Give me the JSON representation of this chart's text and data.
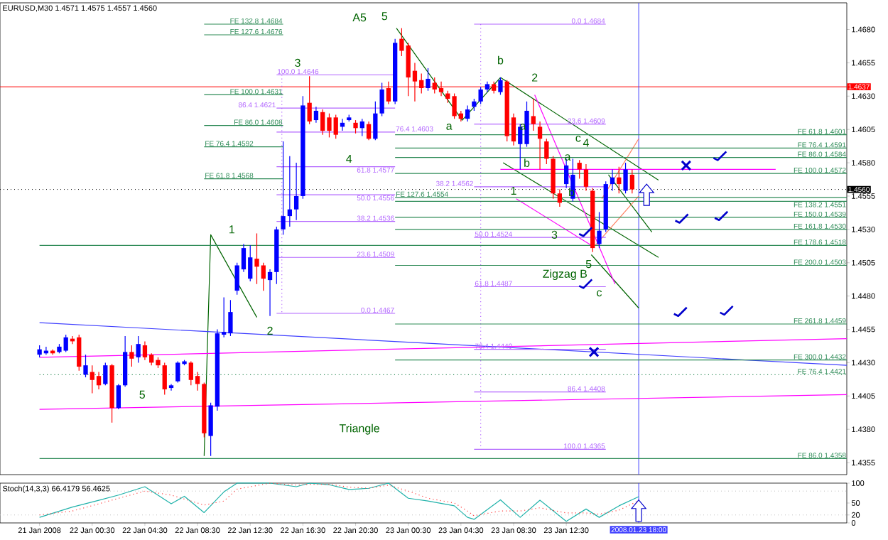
{
  "chart_data": [
    {
      "type": "candlestick",
      "title": "EURUSD,M30 1.4571 1.4575 1.4557 1.4560",
      "x": [
        "2008-01-21T20:30",
        "2008-01-21T21:00",
        "2008-01-21T21:30",
        "2008-01-21T22:00",
        "2008-01-21T22:30",
        "2008-01-21T23:00",
        "2008-01-21T23:30",
        "2008-01-22T00:00",
        "2008-01-22T00:30",
        "2008-01-22T01:00",
        "2008-01-22T01:30",
        "2008-01-22T02:00",
        "2008-01-22T02:30",
        "2008-01-22T03:00",
        "2008-01-22T03:30",
        "2008-01-22T04:00",
        "2008-01-22T04:30",
        "2008-01-22T05:00",
        "2008-01-22T05:30",
        "2008-01-22T06:00",
        "2008-01-22T06:30",
        "2008-01-22T07:00",
        "2008-01-22T07:30",
        "2008-01-22T08:00",
        "2008-01-22T08:30",
        "2008-01-22T09:00",
        "2008-01-22T09:30",
        "2008-01-22T10:00",
        "2008-01-22T10:30",
        "2008-01-22T11:00",
        "2008-01-22T11:30",
        "2008-01-22T12:00",
        "2008-01-22T12:30",
        "2008-01-22T13:00",
        "2008-01-22T13:30",
        "2008-01-22T14:00",
        "2008-01-22T14:30",
        "2008-01-22T15:00",
        "2008-01-22T15:30",
        "2008-01-22T16:00",
        "2008-01-22T16:30",
        "2008-01-22T17:00",
        "2008-01-22T17:30",
        "2008-01-22T18:00",
        "2008-01-22T18:30",
        "2008-01-22T19:00",
        "2008-01-22T19:30",
        "2008-01-22T20:00",
        "2008-01-22T20:30",
        "2008-01-22T21:00",
        "2008-01-22T21:30",
        "2008-01-22T22:00",
        "2008-01-22T22:30",
        "2008-01-22T23:00",
        "2008-01-22T23:30",
        "2008-01-23T00:00",
        "2008-01-23T00:30",
        "2008-01-23T01:00",
        "2008-01-23T01:30",
        "2008-01-23T02:00",
        "2008-01-23T02:30",
        "2008-01-23T03:00",
        "2008-01-23T03:30",
        "2008-01-23T04:00",
        "2008-01-23T04:30",
        "2008-01-23T05:00",
        "2008-01-23T05:30",
        "2008-01-23T06:00",
        "2008-01-23T06:30",
        "2008-01-23T07:00",
        "2008-01-23T07:30",
        "2008-01-23T08:00",
        "2008-01-23T08:30",
        "2008-01-23T09:00",
        "2008-01-23T09:30",
        "2008-01-23T10:00",
        "2008-01-23T10:30",
        "2008-01-23T11:00",
        "2008-01-23T11:30",
        "2008-01-23T12:00",
        "2008-01-23T12:30",
        "2008-01-23T13:00",
        "2008-01-23T13:30",
        "2008-01-23T14:00",
        "2008-01-23T14:30",
        "2008-01-23T15:00",
        "2008-01-23T15:30",
        "2008-01-23T16:00",
        "2008-01-23T16:30",
        "2008-01-23T17:00",
        "2008-01-23T17:30"
      ],
      "ohlc": [
        [
          1.4436,
          1.4443,
          1.4434,
          1.444
        ],
        [
          1.4437,
          1.4442,
          1.4436,
          1.4439
        ],
        [
          1.4439,
          1.444,
          1.4436,
          1.4437
        ],
        [
          1.4438,
          1.4444,
          1.4437,
          1.4442
        ],
        [
          1.4439,
          1.4451,
          1.4438,
          1.4449
        ],
        [
          1.4448,
          1.445,
          1.4444,
          1.4446
        ],
        [
          1.4449,
          1.4451,
          1.4424,
          1.4427
        ],
        [
          1.4421,
          1.4436,
          1.4419,
          1.4428
        ],
        [
          1.4423,
          1.4428,
          1.4407,
          1.4417
        ],
        [
          1.442,
          1.4423,
          1.441,
          1.4413
        ],
        [
          1.4414,
          1.443,
          1.4413,
          1.4428
        ],
        [
          1.4428,
          1.4429,
          1.4385,
          1.4396
        ],
        [
          1.4396,
          1.4414,
          1.4395,
          1.4413
        ],
        [
          1.4413,
          1.445,
          1.4412,
          1.4438
        ],
        [
          1.4438,
          1.4443,
          1.4427,
          1.4433
        ],
        [
          1.4434,
          1.445,
          1.443,
          1.4444
        ],
        [
          1.4443,
          1.4446,
          1.4432,
          1.4434
        ],
        [
          1.4436,
          1.4437,
          1.4428,
          1.443
        ],
        [
          1.4432,
          1.4434,
          1.4426,
          1.4428
        ],
        [
          1.4428,
          1.443,
          1.4406,
          1.441
        ],
        [
          1.4411,
          1.4414,
          1.4409,
          1.4413
        ],
        [
          1.4416,
          1.4431,
          1.4415,
          1.443
        ],
        [
          1.4429,
          1.4432,
          1.4428,
          1.4431
        ],
        [
          1.443,
          1.4431,
          1.4413,
          1.4417
        ],
        [
          1.442,
          1.4423,
          1.4409,
          1.4414
        ],
        [
          1.4414,
          1.4415,
          1.4374,
          1.4377
        ],
        [
          1.4375,
          1.44,
          1.436,
          1.4398
        ],
        [
          1.4397,
          1.4455,
          1.4394,
          1.4452
        ],
        [
          1.4451,
          1.4479,
          1.4449,
          1.4453
        ],
        [
          1.4452,
          1.4477,
          1.445,
          1.4468
        ],
        [
          1.4484,
          1.4505,
          1.4481,
          1.4503
        ],
        [
          1.45,
          1.4519,
          1.4498,
          1.4516
        ],
        [
          1.4493,
          1.4518,
          1.4491,
          1.4509
        ],
        [
          1.4508,
          1.4527,
          1.4489,
          1.4502
        ],
        [
          1.4503,
          1.4505,
          1.4484,
          1.4493
        ],
        [
          1.4492,
          1.45,
          1.4465,
          1.4498
        ],
        [
          1.4498,
          1.4532,
          1.4489,
          1.453
        ],
        [
          1.453,
          1.4596,
          1.4526,
          1.454
        ],
        [
          1.454,
          1.4585,
          1.4532,
          1.4545
        ],
        [
          1.4545,
          1.458,
          1.4537,
          1.4555
        ],
        [
          1.4555,
          1.463,
          1.4553,
          1.4623
        ],
        [
          1.4625,
          1.4645,
          1.4609,
          1.4611
        ],
        [
          1.4612,
          1.4622,
          1.461,
          1.4619
        ],
        [
          1.4618,
          1.462,
          1.4601,
          1.4604
        ],
        [
          1.4614,
          1.4617,
          1.4599,
          1.4604
        ],
        [
          1.4614,
          1.4616,
          1.4598,
          1.4601
        ],
        [
          1.4607,
          1.4613,
          1.4604,
          1.461
        ],
        [
          1.4612,
          1.4616,
          1.4611,
          1.4614
        ],
        [
          1.461,
          1.4612,
          1.4602,
          1.4606
        ],
        [
          1.4606,
          1.4613,
          1.46,
          1.4611
        ],
        [
          1.4609,
          1.4611,
          1.4597,
          1.4598
        ],
        [
          1.4598,
          1.4626,
          1.4597,
          1.4617
        ],
        [
          1.4617,
          1.464,
          1.4615,
          1.4635
        ],
        [
          1.4636,
          1.4641,
          1.4624,
          1.4626
        ],
        [
          1.4626,
          1.4673,
          1.4624,
          1.467
        ],
        [
          1.4673,
          1.4681,
          1.466,
          1.4664
        ],
        [
          1.4668,
          1.467,
          1.463,
          1.4644
        ],
        [
          1.4649,
          1.4655,
          1.4626,
          1.4641
        ],
        [
          1.4642,
          1.4647,
          1.4632,
          1.4636
        ],
        [
          1.4636,
          1.4651,
          1.4634,
          1.4643
        ],
        [
          1.464,
          1.4644,
          1.4632,
          1.4635
        ],
        [
          1.4636,
          1.4641,
          1.463,
          1.4633
        ],
        [
          1.4632,
          1.4634,
          1.4625,
          1.4628
        ],
        [
          1.463,
          1.4632,
          1.4613,
          1.4615
        ],
        [
          1.4617,
          1.4619,
          1.4611,
          1.4613
        ],
        [
          1.4613,
          1.4623,
          1.4611,
          1.462
        ],
        [
          1.4622,
          1.4628,
          1.4619,
          1.4626
        ],
        [
          1.4626,
          1.4637,
          1.4624,
          1.4635
        ],
        [
          1.4635,
          1.4641,
          1.4633,
          1.4639
        ],
        [
          1.4639,
          1.4641,
          1.4632,
          1.4634
        ],
        [
          1.4633,
          1.4644,
          1.4631,
          1.4642
        ],
        [
          1.4641,
          1.4642,
          1.4596,
          1.46
        ],
        [
          1.4614,
          1.4617,
          1.4593,
          1.4596
        ],
        [
          1.4594,
          1.4609,
          1.4575,
          1.4607
        ],
        [
          1.4594,
          1.4626,
          1.4592,
          1.4619
        ],
        [
          1.4615,
          1.4628,
          1.4604,
          1.4609
        ],
        [
          1.4607,
          1.4611,
          1.4575,
          1.4598
        ],
        [
          1.4596,
          1.4598,
          1.4579,
          1.4583
        ],
        [
          1.4583,
          1.4585,
          1.4553,
          1.4557
        ],
        [
          1.4557,
          1.456,
          1.4547,
          1.455
        ],
        [
          1.4564,
          1.4583,
          1.4561,
          1.4578
        ],
        [
          1.4553,
          1.4583,
          1.4551,
          1.4571
        ],
        [
          1.458,
          1.4582,
          1.4568,
          1.4575
        ],
        [
          1.4575,
          1.4579,
          1.4559,
          1.4562
        ],
        [
          1.4559,
          1.4561,
          1.4513,
          1.4516
        ],
        [
          1.4519,
          1.4543,
          1.4516,
          1.4529
        ],
        [
          1.453,
          1.4566,
          1.4528,
          1.4564
        ],
        [
          1.4564,
          1.4575,
          1.4559,
          1.4569
        ],
        [
          1.4569,
          1.4577,
          1.4557,
          1.4564
        ],
        [
          1.4559,
          1.458,
          1.4557,
          1.4575
        ],
        [
          1.4571,
          1.4575,
          1.4557,
          1.456
        ]
      ],
      "colors": [
        "#0000ff",
        "#0000ff",
        "#ff0000",
        "#0000ff",
        "#0000ff",
        "#ff0000",
        "#ff0000",
        "#0000ff",
        "#ff0000",
        "#ff0000",
        "#0000ff",
        "#ff0000",
        "#0000ff",
        "#0000ff",
        "#ff0000",
        "#0000ff",
        "#ff0000",
        "#ff0000",
        "#ff0000",
        "#ff0000",
        "#0000ff",
        "#0000ff",
        "#0000ff",
        "#ff0000",
        "#ff0000",
        "#ff0000",
        "#0000ff",
        "#0000ff",
        "#0000ff",
        "#0000ff",
        "#0000ff",
        "#0000ff",
        "#0000ff",
        "#ff0000",
        "#ff0000",
        "#0000ff",
        "#0000ff",
        "#0000ff",
        "#0000ff",
        "#0000ff",
        "#0000ff",
        "#ff0000",
        "#0000ff",
        "#ff0000",
        "#ff0000",
        "#ff0000",
        "#0000ff",
        "#0000ff",
        "#ff0000",
        "#0000ff",
        "#ff0000",
        "#0000ff",
        "#0000ff",
        "#ff0000",
        "#0000ff",
        "#ff0000",
        "#ff0000",
        "#ff0000",
        "#ff0000",
        "#0000ff",
        "#ff0000",
        "#ff0000",
        "#ff0000",
        "#ff0000",
        "#ff0000",
        "#0000ff",
        "#0000ff",
        "#0000ff",
        "#0000ff",
        "#ff0000",
        "#0000ff",
        "#ff0000",
        "#ff0000",
        "#0000ff",
        "#0000ff",
        "#ff0000",
        "#ff0000",
        "#ff0000",
        "#ff0000",
        "#ff0000",
        "#0000ff",
        "#0000ff",
        "#ff0000",
        "#ff0000",
        "#ff0000",
        "#0000ff",
        "#0000ff",
        "#0000ff",
        "#ff0000",
        "#0000ff",
        "#ff0000"
      ],
      "series": [
        {
          "type": "line",
          "x": [
            "2008-01-22T09:00",
            "2008-01-22T09:30",
            "2008-01-22T13:00"
          ],
          "values": [
            1.436,
            1.4526,
            1.4464
          ],
          "color": "#006400"
        },
        {
          "type": "line",
          "x": [
            "2008-01-22T23:36",
            "2008-01-23T04:36",
            "2008-01-23T07:30"
          ],
          "values": [
            1.4681,
            1.4612,
            1.4644
          ],
          "color": "#006400"
        },
        {
          "type": "line",
          "x": [
            "2008-01-23T07:30",
            "2008-01-23T19:30"
          ],
          "values": [
            1.4644,
            1.4567
          ],
          "color": "#006400"
        },
        {
          "type": "line",
          "x": [
            "2008-01-23T07:42",
            "2008-01-23T19:30"
          ],
          "values": [
            1.458,
            1.4509
          ],
          "color": "#006400"
        },
        {
          "type": "line",
          "x": [
            "2008-01-23T15:42",
            "2008-01-23T19:00"
          ],
          "values": [
            1.4571,
            1.4528
          ],
          "color": "#006400"
        },
        {
          "type": "line",
          "x": [
            "2008-01-23T14:24",
            "2008-01-23T18:00"
          ],
          "values": [
            1.4511,
            1.4471
          ],
          "color": "#006400"
        },
        {
          "type": "line",
          "x": [
            "2008-01-23T10:06",
            "2008-01-23T16:12"
          ],
          "values": [
            1.4631,
            1.4489
          ],
          "color": "#ff00ff"
        },
        {
          "type": "line",
          "x": [
            "2008-01-23T08:42",
            "2008-01-23T14:24"
          ],
          "values": [
            1.4553,
            1.4518
          ],
          "color": "#ff00ff"
        },
        {
          "type": "line",
          "x": [
            "2008-01-23T07:30",
            "2008-01-24T04:24"
          ],
          "values": [
            1.4575,
            1.4575
          ],
          "color": "#ff00ff"
        },
        {
          "type": "line",
          "x": [
            "2008-01-21T20:30",
            "2008-01-24T09:48"
          ],
          "values": [
            1.4434,
            1.4448
          ],
          "color": "#ff00ff"
        },
        {
          "type": "line",
          "x": [
            "2008-01-21T20:30",
            "2008-01-24T09:48"
          ],
          "values": [
            1.4395,
            1.4406
          ],
          "color": "#ff00ff"
        },
        {
          "type": "line",
          "x": [
            "2008-01-21T20:30",
            "2008-01-24T09:48"
          ],
          "values": [
            1.446,
            1.4428
          ],
          "color": "#4040ff"
        },
        {
          "type": "line",
          "x": [
            "2008-01-23T15:12",
            "2008-01-23T18:00"
          ],
          "values": [
            1.4553,
            1.4598
          ],
          "color": "#ff8060"
        },
        {
          "type": "line",
          "x": [
            "2008-01-23T14:42",
            "2008-01-23T18:00"
          ],
          "values": [
            1.4518,
            1.4555
          ],
          "color": "#ff8060"
        },
        {
          "type": "line",
          "x": [
            "2008-01-22T14:54",
            "2008-01-22T14:54"
          ],
          "values": [
            1.4646,
            1.4467
          ],
          "color": "#b266ff",
          "line_style": "dotted"
        },
        {
          "type": "line",
          "x": [
            "2008-01-23T06:00",
            "2008-01-23T06:00"
          ],
          "values": [
            1.4684,
            1.4365
          ],
          "color": "#b266ff",
          "line_style": "dotted"
        },
        {
          "type": "line",
          "name": "FE 132.8  1.4684",
          "x": [
            "2008-01-22T09:00",
            "2008-01-22T15:00"
          ],
          "values": [
            1.4684,
            1.4684
          ],
          "color": "#2e8b57"
        },
        {
          "type": "line",
          "name": "FE 127.6  1.4676",
          "x": [
            "2008-01-22T09:00",
            "2008-01-22T15:00"
          ],
          "values": [
            1.4676,
            1.4676
          ],
          "color": "#2e8b57"
        },
        {
          "type": "line",
          "name": "FE 100.0  1.4631",
          "x": [
            "2008-01-22T09:00",
            "2008-01-22T15:00"
          ],
          "values": [
            1.4631,
            1.4631
          ],
          "color": "#2e8b57"
        },
        {
          "type": "line",
          "name": "FE 86.0  1.4608",
          "x": [
            "2008-01-22T09:00",
            "2008-01-22T15:00"
          ],
          "values": [
            1.4608,
            1.4608
          ],
          "color": "#2e8b57"
        },
        {
          "type": "line",
          "name": "FE 76.4  1.4592",
          "x": [
            "2008-01-22T09:00",
            "2008-01-22T15:00"
          ],
          "values": [
            1.4592,
            1.4592
          ],
          "color": "#2e8b57"
        },
        {
          "type": "line",
          "name": "FE 61.8  1.4568",
          "x": [
            "2008-01-22T09:00",
            "2008-01-22T15:00"
          ],
          "values": [
            1.4568,
            1.4568
          ],
          "color": "#2e8b57"
        },
        {
          "type": "line",
          "name": "100.0  1.4646",
          "x": [
            "2008-01-22T14:30",
            "2008-01-22T23:30"
          ],
          "values": [
            1.4646,
            1.4646
          ],
          "color": "#b266ff"
        },
        {
          "type": "line",
          "name": "86.4  1.4621",
          "x": [
            "2008-01-22T14:30",
            "2008-01-22T23:30"
          ],
          "values": [
            1.4621,
            1.4621
          ],
          "color": "#b266ff"
        },
        {
          "type": "line",
          "name": "76.4  1.4603",
          "x": [
            "2008-01-22T14:30",
            "2008-01-22T23:30"
          ],
          "values": [
            1.4603,
            1.4603
          ],
          "color": "#b266ff"
        },
        {
          "type": "line",
          "name": "61.8  1.4577",
          "x": [
            "2008-01-22T14:30",
            "2008-01-22T23:30"
          ],
          "values": [
            1.4577,
            1.4577
          ],
          "color": "#b266ff"
        },
        {
          "type": "line",
          "name": "50.0  1.4556",
          "x": [
            "2008-01-22T14:30",
            "2008-01-22T23:30"
          ],
          "values": [
            1.4556,
            1.4556
          ],
          "color": "#b266ff"
        },
        {
          "type": "line",
          "name": "38.2  1.4536",
          "x": [
            "2008-01-22T14:30",
            "2008-01-22T23:30"
          ],
          "values": [
            1.4536,
            1.4536
          ],
          "color": "#b266ff"
        },
        {
          "type": "line",
          "name": "23.6  1.4509",
          "x": [
            "2008-01-22T14:30",
            "2008-01-22T23:30"
          ],
          "values": [
            1.4509,
            1.4509
          ],
          "color": "#b266ff"
        },
        {
          "type": "line",
          "name": "0.0  1.4467",
          "x": [
            "2008-01-22T14:30",
            "2008-01-22T23:30"
          ],
          "values": [
            1.4467,
            1.4467
          ],
          "color": "#b266ff"
        },
        {
          "type": "line",
          "name": "0.0  1.4684",
          "x": [
            "2008-01-23T05:30",
            "2008-01-23T15:30"
          ],
          "values": [
            1.4684,
            1.4684
          ],
          "color": "#b266ff"
        },
        {
          "type": "line",
          "name": "23.6  1.4609",
          "x": [
            "2008-01-23T05:30",
            "2008-01-23T15:30"
          ],
          "values": [
            1.4609,
            1.4609
          ],
          "color": "#b266ff"
        },
        {
          "type": "line",
          "name": "38.2  1.4562",
          "x": [
            "2008-01-23T05:30",
            "2008-01-23T15:30"
          ],
          "values": [
            1.4562,
            1.4562
          ],
          "color": "#b266ff"
        },
        {
          "type": "line",
          "name": "50.0  1.4524",
          "x": [
            "2008-01-23T05:30",
            "2008-01-23T15:30"
          ],
          "values": [
            1.4524,
            1.4524
          ],
          "color": "#b266ff"
        },
        {
          "type": "line",
          "name": "61.8  1.4487",
          "x": [
            "2008-01-23T05:30",
            "2008-01-23T15:30"
          ],
          "values": [
            1.4487,
            1.4487
          ],
          "color": "#b266ff"
        },
        {
          "type": "line",
          "name": "76.4  1.4440",
          "x": [
            "2008-01-23T05:30",
            "2008-01-23T15:30"
          ],
          "values": [
            1.444,
            1.444
          ],
          "color": "#b266ff"
        },
        {
          "type": "line",
          "name": "86.4  1.4408",
          "x": [
            "2008-01-23T05:30",
            "2008-01-23T15:30"
          ],
          "values": [
            1.4408,
            1.4408
          ],
          "color": "#b266ff"
        },
        {
          "type": "line",
          "name": "100.0  1.4365",
          "x": [
            "2008-01-23T05:30",
            "2008-01-23T15:30"
          ],
          "values": [
            1.4365,
            1.4365
          ],
          "color": "#b266ff"
        },
        {
          "type": "line",
          "name": "FE 61.8  1.4601",
          "x": [
            "2008-01-22T23:30",
            "2008-01-24T09:48"
          ],
          "values": [
            1.4601,
            1.4601
          ],
          "color": "#2e8b57"
        },
        {
          "type": "line",
          "name": "FE 76.4  1.4591",
          "x": [
            "2008-01-22T23:30",
            "2008-01-24T09:48"
          ],
          "values": [
            1.4591,
            1.4591
          ],
          "color": "#2e8b57"
        },
        {
          "type": "line",
          "name": "FE 86.0  1.4584",
          "x": [
            "2008-01-22T23:30",
            "2008-01-24T09:48"
          ],
          "values": [
            1.4584,
            1.4584
          ],
          "color": "#2e8b57"
        },
        {
          "type": "line",
          "name": "FE 100.0  1.4572",
          "x": [
            "2008-01-22T23:30",
            "2008-01-24T09:48"
          ],
          "values": [
            1.4572,
            1.4572
          ],
          "color": "#2e8b57"
        },
        {
          "type": "line",
          "name": "FE 127.6  1.4554",
          "x": [
            "2008-01-22T23:30",
            "2008-01-24T09:48"
          ],
          "values": [
            1.4554,
            1.4554
          ],
          "color": "#2e8b57"
        },
        {
          "type": "line",
          "name": "FE 138.2  1.4551",
          "x": [
            "2008-01-22T23:30",
            "2008-01-24T09:48"
          ],
          "values": [
            1.4551,
            1.4551
          ],
          "color": "#2e8b57"
        },
        {
          "type": "line",
          "name": "FE 150.0  1.4539",
          "x": [
            "2008-01-22T23:30",
            "2008-01-24T09:48"
          ],
          "values": [
            1.4539,
            1.4539
          ],
          "color": "#2e8b57"
        },
        {
          "type": "line",
          "name": "FE 161.8  1.4530",
          "x": [
            "2008-01-22T23:30",
            "2008-01-24T09:48"
          ],
          "values": [
            1.453,
            1.453
          ],
          "color": "#2e8b57"
        },
        {
          "type": "line",
          "name": "FE 178.6  1.4518",
          "x": [
            "2008-01-21T20:30",
            "2008-01-24T09:48"
          ],
          "values": [
            1.4518,
            1.4518
          ],
          "color": "#2e8b57"
        },
        {
          "type": "line",
          "name": "FE 200.0  1.4503",
          "x": [
            "2008-01-22T23:30",
            "2008-01-24T09:48"
          ],
          "values": [
            1.4503,
            1.4503
          ],
          "color": "#2e8b57"
        },
        {
          "type": "line",
          "name": "FE 261.8  1.4459",
          "x": [
            "2008-01-22T23:30",
            "2008-01-24T09:48"
          ],
          "values": [
            1.4459,
            1.4459
          ],
          "color": "#2e8b57"
        },
        {
          "type": "line",
          "name": "FE 300.0  1.4432",
          "x": [
            "2008-01-22T23:30",
            "2008-01-24T09:48"
          ],
          "values": [
            1.4432,
            1.4432
          ],
          "color": "#2e8b57"
        },
        {
          "type": "line",
          "name": "FE 76.4  1.4421",
          "x": [
            "2008-01-21T20:30",
            "2008-01-24T09:48"
          ],
          "values": [
            1.4421,
            1.4421
          ],
          "color": "#2e8b57",
          "line_style": "dotted"
        },
        {
          "type": "line",
          "name": "FE 86.0  1.4358",
          "x": [
            "2008-01-21T20:30",
            "2008-01-24T09:48"
          ],
          "values": [
            1.4358,
            1.4358
          ],
          "color": "#2e8b57"
        }
      ],
      "xlim": [
        "2008-01-21T17:30",
        "2008-01-24T09:48"
      ],
      "ylim": [
        1.4346,
        1.47
      ],
      "yticks": [
        {
          "value": 1.4355,
          "label": "1.4355"
        },
        {
          "value": 1.438,
          "label": "1.4380"
        },
        {
          "value": 1.4405,
          "label": "1.4405"
        },
        {
          "value": 1.443,
          "label": "1.4430"
        },
        {
          "value": 1.4455,
          "label": "1.4455"
        },
        {
          "value": 1.448,
          "label": "1.4480"
        },
        {
          "value": 1.4505,
          "label": "1.4505"
        },
        {
          "value": 1.453,
          "label": "1.4530"
        },
        {
          "value": 1.4555,
          "label": "1.4555"
        },
        {
          "value": 1.458,
          "label": "1.4580"
        },
        {
          "value": 1.4605,
          "label": "1.4605"
        },
        {
          "value": 1.463,
          "label": "1.4630"
        },
        {
          "value": 1.4655,
          "label": "1.4655"
        },
        {
          "value": 1.468,
          "label": "1.4680"
        }
      ],
      "tick_labels": "y",
      "ref_lines": [
        {
          "axis": "y",
          "value": 1.4637,
          "label": "1.4637",
          "color": "#ff0000"
        },
        {
          "axis": "y",
          "value": 1.456,
          "label": "1.4560",
          "color": "#000000",
          "line_style": "dotted"
        },
        {
          "axis": "x",
          "value": "2008-01-23T18:00",
          "color": "#4040ff"
        }
      ],
      "annotations": [
        "A5",
        "5",
        "3",
        "4",
        "1",
        "2",
        "5",
        "Triangle",
        "a",
        "b",
        "2",
        "a",
        "b",
        "c",
        "4",
        "1",
        "a",
        "b",
        "3",
        "5",
        "Zigzag B",
        "c"
      ]
    },
    {
      "type": "line",
      "title": "Stoch(14,3,3) 66.4179 56.4625",
      "x": [
        "2008-01-21T20:30",
        "2008-01-21T23:00",
        "2008-01-22T01:00",
        "2008-01-22T02:30",
        "2008-01-22T04:30",
        "2008-01-22T06:30",
        "2008-01-22T07:30",
        "2008-01-22T09:00",
        "2008-01-22T10:30",
        "2008-01-22T11:30",
        "2008-01-22T14:00",
        "2008-01-22T16:00",
        "2008-01-22T17:00",
        "2008-01-22T18:30",
        "2008-01-22T20:00",
        "2008-01-22T21:30",
        "2008-01-22T23:00",
        "2008-01-23T00:30",
        "2008-01-23T02:00",
        "2008-01-23T04:00",
        "2008-01-23T05:00",
        "2008-01-23T05:30",
        "2008-01-23T07:30",
        "2008-01-23T09:00",
        "2008-01-23T10:30",
        "2008-01-23T12:30",
        "2008-01-23T14:00",
        "2008-01-23T15:00",
        "2008-01-23T16:30",
        "2008-01-23T18:00"
      ],
      "series": [
        {
          "color": "#20b2aa",
          "values": [
            14,
            40,
            57,
            70,
            91,
            48,
            67,
            26,
            78,
            100,
            100,
            91,
            100,
            96,
            84,
            87,
            100,
            62,
            55,
            43,
            14,
            9,
            58,
            14,
            57,
            4,
            35,
            14,
            43,
            66
          ]
        },
        {
          "color": "#ff4040",
          "line_style": "dotted",
          "values": [
            20,
            30,
            48,
            62,
            80,
            70,
            60,
            45,
            55,
            85,
            100,
            95,
            97,
            97,
            90,
            87,
            95,
            80,
            62,
            50,
            30,
            18,
            30,
            30,
            38,
            25,
            25,
            22,
            32,
            56
          ]
        }
      ],
      "xlim": [
        "2008-01-21T17:30",
        "2008-01-24T09:48"
      ],
      "ylim": [
        0,
        100
      ],
      "yticks": [
        0,
        20,
        50,
        100
      ],
      "xticks": [
        {
          "value": "2008-01-21T20:30",
          "label": "21 Jan 2008"
        },
        {
          "value": "2008-01-22T00:30",
          "label": "22 Jan 00:30"
        },
        {
          "value": "2008-01-22T04:30",
          "label": "22 Jan 04:30"
        },
        {
          "value": "2008-01-22T08:30",
          "label": "22 Jan 08:30"
        },
        {
          "value": "2008-01-22T12:30",
          "label": "22 Jan 12:30"
        },
        {
          "value": "2008-01-22T16:30",
          "label": "22 Jan 16:30"
        },
        {
          "value": "2008-01-22T20:30",
          "label": "22 Jan 20:30"
        },
        {
          "value": "2008-01-23T00:30",
          "label": "23 Jan 00:30"
        },
        {
          "value": "2008-01-23T04:30",
          "label": "23 Jan 04:30"
        },
        {
          "value": "2008-01-23T08:30",
          "label": "23 Jan 08:30"
        },
        {
          "value": "2008-01-23T12:30",
          "label": "23 Jan 12:30"
        }
      ],
      "ref_lines": [
        {
          "axis": "y",
          "value": 20,
          "color": "#c0c0c0",
          "line_style": "dotted"
        },
        {
          "axis": "y",
          "value": 80,
          "color": "#c0c0c0",
          "line_style": "dotted"
        },
        {
          "axis": "x",
          "value": "2008-01-23T18:00",
          "label": "2008.01.23 18:00",
          "color": "#4040ff"
        }
      ]
    }
  ]
}
